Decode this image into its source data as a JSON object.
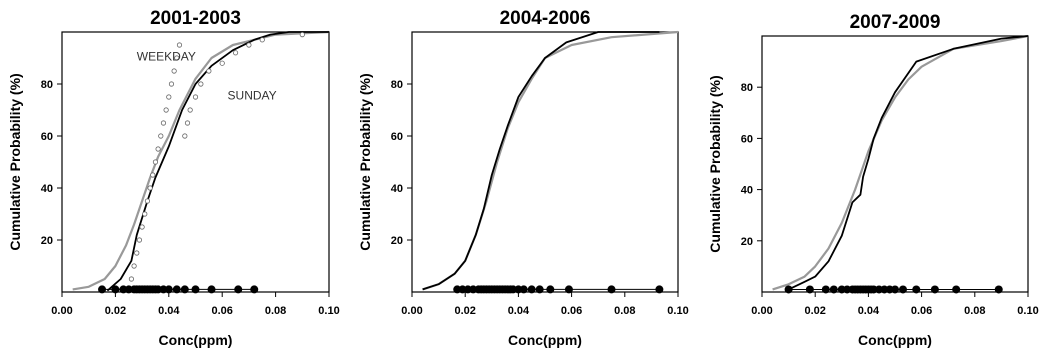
{
  "colors": {
    "weekday": "#999999",
    "sunday": "#000000",
    "axis": "#000000"
  },
  "chart_data": [
    {
      "type": "line",
      "title": "2001-2003",
      "xlabel": "Conc(ppm)",
      "ylabel": "Cumulative Probability (%)",
      "xlim": [
        0,
        0.1
      ],
      "ylim": [
        0,
        100
      ],
      "x_ticks": [
        "0.00",
        "0.02",
        "0.04",
        "0.06",
        "0.08",
        "0.10"
      ],
      "y_ticks": [
        "20",
        "40",
        "60",
        "80"
      ],
      "annotations": [
        {
          "text": "WEEKDAY",
          "x": 0.028,
          "y": 89
        },
        {
          "text": "SUNDAY",
          "x": 0.062,
          "y": 74
        }
      ],
      "series": [
        {
          "style": "gray-line",
          "x": [
            0.004,
            0.01,
            0.016,
            0.02,
            0.024,
            0.027,
            0.03,
            0.033,
            0.036,
            0.04,
            0.044,
            0.05,
            0.056,
            0.064,
            0.072,
            0.08,
            0.1
          ],
          "y": [
            1,
            2,
            5,
            10,
            18,
            26,
            35,
            44,
            52,
            60,
            70,
            82,
            90,
            95,
            97,
            99,
            100
          ]
        },
        {
          "style": "black-line",
          "x": [
            0.017,
            0.022,
            0.026,
            0.028,
            0.032,
            0.035,
            0.04,
            0.045,
            0.05,
            0.056,
            0.064,
            0.072,
            0.078,
            0.085,
            0.1
          ],
          "y": [
            0.5,
            5,
            12,
            22,
            35,
            44,
            56,
            70,
            80,
            87,
            93,
            97,
            99,
            100,
            100
          ]
        },
        {
          "style": "open-dots",
          "x": [
            0.026,
            0.027,
            0.028,
            0.029,
            0.03,
            0.031,
            0.032,
            0.033,
            0.034,
            0.035,
            0.036,
            0.037,
            0.038,
            0.039,
            0.04,
            0.041,
            0.042,
            0.043,
            0.044,
            0.046,
            0.047,
            0.048,
            0.05,
            0.052,
            0.055,
            0.06,
            0.065,
            0.07,
            0.075,
            0.09
          ],
          "y": [
            5,
            10,
            15,
            20,
            25,
            30,
            35,
            40,
            45,
            50,
            55,
            60,
            65,
            70,
            75,
            80,
            85,
            90,
            95,
            60,
            65,
            70,
            75,
            80,
            85,
            88,
            92,
            95,
            97,
            99
          ]
        },
        {
          "style": "rug",
          "x": [
            0.015,
            0.02,
            0.023,
            0.025,
            0.027,
            0.028,
            0.029,
            0.03,
            0.031,
            0.032,
            0.033,
            0.034,
            0.035,
            0.036,
            0.038,
            0.04,
            0.043,
            0.046,
            0.05,
            0.056,
            0.066,
            0.072
          ],
          "y": [
            1,
            1,
            1,
            1,
            1,
            1,
            1,
            1,
            1,
            1,
            1,
            1,
            1,
            1,
            1,
            1,
            1,
            1,
            1,
            1,
            1,
            1
          ]
        }
      ]
    },
    {
      "type": "line",
      "title": "2004-2006",
      "xlabel": "Conc(ppm)",
      "ylabel": "Cumulative Probability (%)",
      "xlim": [
        0,
        0.1
      ],
      "ylim": [
        0,
        100
      ],
      "x_ticks": [
        "0.00",
        "0.02",
        "0.04",
        "0.06",
        "0.08",
        "0.10"
      ],
      "y_ticks": [
        "20",
        "40",
        "60",
        "80"
      ],
      "annotations": [],
      "series": [
        {
          "style": "gray-line",
          "x": [
            0.004,
            0.01,
            0.016,
            0.02,
            0.024,
            0.028,
            0.032,
            0.036,
            0.04,
            0.045,
            0.05,
            0.06,
            0.075,
            0.1
          ],
          "y": [
            1,
            3,
            7,
            12,
            22,
            35,
            50,
            63,
            73,
            82,
            90,
            95,
            98,
            100
          ]
        },
        {
          "style": "black-line",
          "x": [
            0.004,
            0.01,
            0.016,
            0.02,
            0.024,
            0.027,
            0.03,
            0.033,
            0.036,
            0.04,
            0.045,
            0.05,
            0.058,
            0.07,
            0.093
          ],
          "y": [
            1,
            3,
            7,
            12,
            22,
            32,
            45,
            55,
            64,
            75,
            83,
            90,
            96,
            100,
            100
          ]
        },
        {
          "style": "rug",
          "x": [
            0.017,
            0.019,
            0.021,
            0.023,
            0.025,
            0.026,
            0.027,
            0.028,
            0.029,
            0.03,
            0.031,
            0.032,
            0.033,
            0.034,
            0.035,
            0.036,
            0.037,
            0.038,
            0.04,
            0.042,
            0.045,
            0.048,
            0.052,
            0.059,
            0.075,
            0.093
          ],
          "y": [
            1,
            1,
            1,
            1,
            1,
            1,
            1,
            1,
            1,
            1,
            1,
            1,
            1,
            1,
            1,
            1,
            1,
            1,
            1,
            1,
            1,
            1,
            1,
            1,
            1,
            1
          ]
        }
      ]
    },
    {
      "type": "line",
      "title": "2007-2009",
      "xlabel": "Conc(ppm)",
      "ylabel": "Cumulative Probability (%)",
      "xlim": [
        0,
        0.1
      ],
      "ylim": [
        0,
        100
      ],
      "x_ticks": [
        "0.00",
        "0.02",
        "0.04",
        "0.06",
        "0.08",
        "0.10"
      ],
      "y_ticks": [
        "20",
        "40",
        "60",
        "80"
      ],
      "annotations": [],
      "series": [
        {
          "style": "gray-line",
          "x": [
            0.004,
            0.01,
            0.016,
            0.02,
            0.025,
            0.03,
            0.035,
            0.04,
            0.045,
            0.05,
            0.055,
            0.06,
            0.072,
            0.09,
            0.1
          ],
          "y": [
            1,
            3,
            6,
            10,
            17,
            27,
            40,
            55,
            67,
            76,
            83,
            88,
            95,
            98,
            100
          ]
        },
        {
          "style": "black-line",
          "x": [
            0.01,
            0.016,
            0.02,
            0.025,
            0.03,
            0.034,
            0.037,
            0.038,
            0.04,
            0.042,
            0.045,
            0.05,
            0.058,
            0.072,
            0.09,
            0.1
          ],
          "y": [
            1,
            4,
            6,
            12,
            22,
            35,
            38,
            45,
            52,
            60,
            68,
            78,
            90,
            95,
            99,
            100
          ]
        },
        {
          "style": "rug",
          "x": [
            0.01,
            0.018,
            0.024,
            0.027,
            0.03,
            0.032,
            0.034,
            0.035,
            0.036,
            0.037,
            0.038,
            0.039,
            0.04,
            0.041,
            0.042,
            0.044,
            0.046,
            0.048,
            0.05,
            0.053,
            0.058,
            0.065,
            0.073,
            0.089
          ],
          "y": [
            1,
            1,
            1,
            1,
            1,
            1,
            1,
            1,
            1,
            1,
            1,
            1,
            1,
            1,
            1,
            1,
            1,
            1,
            1,
            1,
            1,
            1,
            1,
            1
          ]
        }
      ]
    }
  ]
}
